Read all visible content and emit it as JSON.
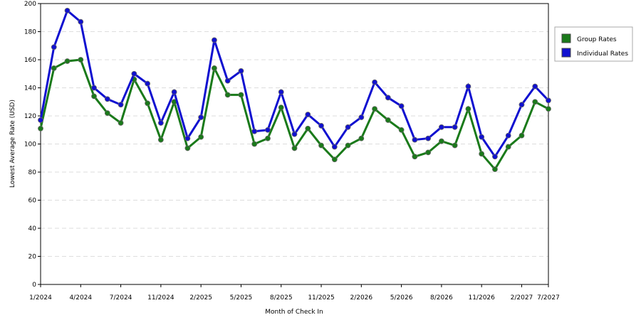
{
  "chart_data": {
    "type": "line",
    "x_label": "Month of Check In",
    "y_label": "Lowest Average Rate (USD)",
    "categories": [
      "1/2024",
      null,
      null,
      "4/2024",
      null,
      null,
      "7/2024",
      null,
      null,
      "11/2024",
      null,
      null,
      "2/2025",
      null,
      null,
      "5/2025",
      null,
      null,
      "8/2025",
      null,
      null,
      "11/2025",
      null,
      null,
      "2/2026",
      null,
      null,
      "5/2026",
      null,
      null,
      "8/2026",
      null,
      null,
      "11/2026",
      null,
      null,
      "2/2027",
      null,
      "7/2027"
    ],
    "series": [
      {
        "name": "Group Rates",
        "color": "#1a7a1a",
        "values": [
          111,
          154,
          159,
          160,
          134,
          122,
          115,
          146,
          129,
          103,
          130,
          97,
          105,
          154,
          135,
          135,
          100,
          104,
          126,
          97,
          111,
          99,
          89,
          99,
          104,
          125,
          117,
          110,
          91,
          94,
          102,
          99,
          125,
          93,
          82,
          98,
          106,
          130,
          125
        ]
      },
      {
        "name": "Individual Rates",
        "color": "#1010d0",
        "values": [
          117,
          169,
          195,
          187,
          140,
          132,
          128,
          150,
          143,
          115,
          137,
          104,
          119,
          174,
          145,
          152,
          109,
          110,
          137,
          107,
          121,
          113,
          98,
          112,
          119,
          144,
          133,
          127,
          103,
          104,
          112,
          112,
          141,
          105,
          91,
          106,
          128,
          141,
          131
        ]
      }
    ],
    "ylim": [
      0,
      200
    ],
    "yticks": [
      0,
      20,
      40,
      60,
      80,
      100,
      120,
      140,
      160,
      180,
      200
    ],
    "grid": true,
    "legend": "right"
  }
}
